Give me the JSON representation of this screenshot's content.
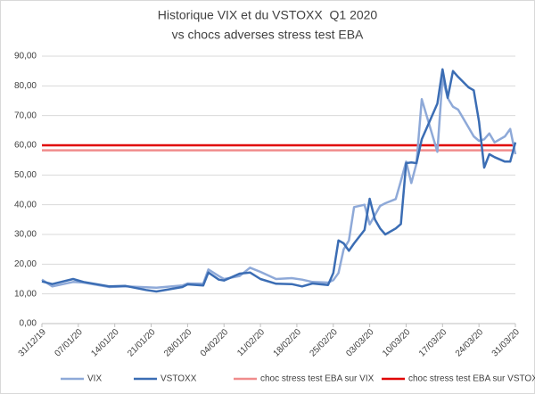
{
  "chart_data": {
    "type": "line",
    "title": [
      "Historique VIX et du VSTOXX  Q1 2020",
      "vs chocs adverses stress test EBA"
    ],
    "x": [
      0,
      2,
      6,
      8,
      13,
      16,
      20,
      22,
      27,
      28,
      31,
      32,
      34,
      35,
      38,
      40,
      42,
      45,
      48,
      50,
      52,
      55,
      56,
      57,
      58,
      59,
      60,
      62,
      63,
      64,
      65,
      66,
      68,
      69,
      70,
      71,
      72,
      73,
      76,
      77,
      78,
      79,
      80,
      82,
      83,
      84,
      85,
      86,
      87,
      89,
      90,
      91
    ],
    "series": [
      {
        "name": "VIX",
        "color": "#8ea9d8",
        "values": [
          14.8,
          12.5,
          14.0,
          13.8,
          12.3,
          12.5,
          12.2,
          12.1,
          12.8,
          13.5,
          13.4,
          18.2,
          16.0,
          15.0,
          16.0,
          18.8,
          17.4,
          15.0,
          15.3,
          14.8,
          14.0,
          13.8,
          14.6,
          17.0,
          25.0,
          28.0,
          39.2,
          40.0,
          33.4,
          36.5,
          39.6,
          40.5,
          41.9,
          48,
          54.5,
          47.3,
          53.9,
          75.5,
          57.8,
          82.7,
          75.9,
          73,
          72,
          66,
          63,
          61.5,
          62,
          64,
          61,
          63,
          65.5,
          57
        ]
      },
      {
        "name": "VSTOXX",
        "color": "#3b6db4",
        "values": [
          14.2,
          13.3,
          15.0,
          14.0,
          12.5,
          12.7,
          11.3,
          10.8,
          12.3,
          13.2,
          12.8,
          17.2,
          14.8,
          14.5,
          16.8,
          17.2,
          15.0,
          13.4,
          13.3,
          12.5,
          13.5,
          13.0,
          17.0,
          28.0,
          27,
          24.5,
          27,
          31.5,
          42.0,
          35,
          32,
          30.0,
          32,
          33.5,
          54.0,
          54.2,
          54.0,
          62,
          74.0,
          85.6,
          76.0,
          85.0,
          83,
          79.5,
          78.5,
          68,
          52.5,
          57,
          56,
          54.5,
          54.5,
          61
        ]
      }
    ],
    "hlines": [
      {
        "name": "choc stress test EBA sur VIX",
        "color": "#f08c8c",
        "value": 58.3
      },
      {
        "name": "choc stress test EBA sur VSTOXX",
        "color": "#e00000",
        "value": 60
      }
    ],
    "xlim": [
      0,
      91
    ],
    "xticks": [
      {
        "value": 0,
        "label": "31/12/19"
      },
      {
        "value": 7,
        "label": "07/01/20"
      },
      {
        "value": 14,
        "label": "14/01/20"
      },
      {
        "value": 21,
        "label": "21/01/20"
      },
      {
        "value": 28,
        "label": "28/01/20"
      },
      {
        "value": 35,
        "label": "04/02/20"
      },
      {
        "value": 42,
        "label": "11/02/20"
      },
      {
        "value": 49,
        "label": "18/02/20"
      },
      {
        "value": 56,
        "label": "25/02/20"
      },
      {
        "value": 63,
        "label": "03/03/20"
      },
      {
        "value": 70,
        "label": "10/03/20"
      },
      {
        "value": 77,
        "label": "17/03/20"
      },
      {
        "value": 84,
        "label": "24/03/20"
      },
      {
        "value": 91,
        "label": "31/03/20"
      }
    ],
    "ylim": [
      0,
      90
    ],
    "yticks": [
      {
        "value": 0,
        "label": "0,00"
      },
      {
        "value": 10,
        "label": "10,00"
      },
      {
        "value": 20,
        "label": "20,00"
      },
      {
        "value": 30,
        "label": "30,00"
      },
      {
        "value": 40,
        "label": "40,00"
      },
      {
        "value": 50,
        "label": "50,00"
      },
      {
        "value": 60,
        "label": "60,00"
      },
      {
        "value": 70,
        "label": "70,00"
      },
      {
        "value": 80,
        "label": "80,00"
      },
      {
        "value": 90,
        "label": "90,00"
      }
    ],
    "grid": true
  }
}
